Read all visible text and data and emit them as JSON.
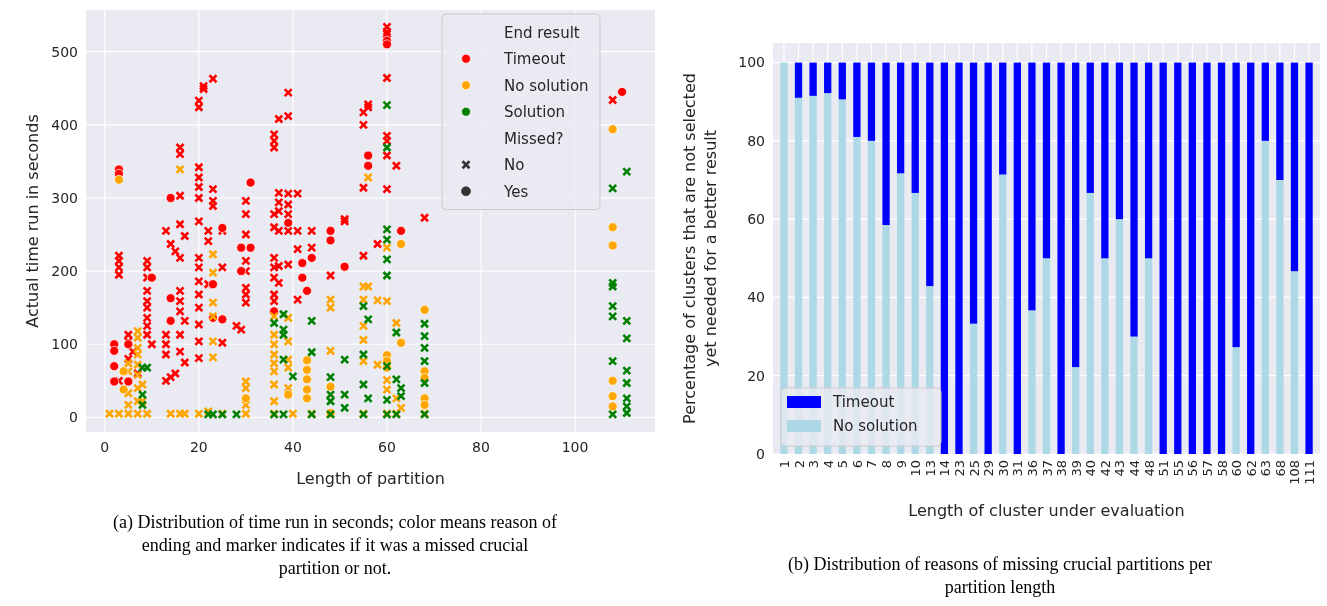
{
  "chart_data": [
    {
      "type": "scatter",
      "xlabel": "Length of partition",
      "ylabel": "Actual time run in seconds",
      "legend_title": "End result",
      "xlim": [
        -4,
        117
      ],
      "ylim": [
        -20,
        557
      ],
      "xticks": [
        0,
        20,
        40,
        60,
        80,
        100
      ],
      "yticks": [
        0,
        100,
        200,
        300,
        400,
        500
      ],
      "grid": true,
      "legend": "top right",
      "annotations": [
        "Missed?",
        "No",
        "Yes",
        "(a) Distribution of time run in seconds; color means reason of ending and marker indicates if it was a missed crucial partition or not."
      ],
      "series": [
        {
          "name": "Timeout",
          "color": "#ff0000",
          "marker": "cross",
          "x": [
            3,
            3,
            3,
            3,
            3,
            5,
            5,
            5,
            6,
            7,
            9,
            9,
            9,
            9,
            9,
            9,
            9,
            9,
            9,
            10,
            13,
            13,
            13,
            13,
            13,
            14,
            14,
            15,
            15,
            16,
            16,
            16,
            16,
            16,
            16,
            16,
            16,
            16,
            16,
            17,
            17,
            17,
            20,
            20,
            20,
            20,
            20,
            20,
            20,
            20,
            20,
            20,
            20,
            20,
            20,
            20,
            20,
            21,
            21,
            23,
            23,
            23,
            23,
            22,
            22,
            22,
            25,
            25,
            25,
            29,
            28,
            30,
            30,
            30,
            30,
            30,
            30,
            30,
            30,
            36,
            36,
            36,
            36,
            36,
            36,
            36,
            36,
            36,
            36,
            37,
            37,
            37,
            37,
            37,
            37,
            37,
            39,
            39,
            39,
            39,
            39,
            39,
            39,
            41,
            41,
            41,
            41,
            44,
            44,
            48,
            51,
            51,
            55,
            55,
            55,
            55,
            56,
            56,
            58,
            60,
            60,
            60,
            60,
            60,
            60,
            60,
            60,
            62,
            68,
            108
          ],
          "values": [
            195,
            205,
            214,
            221,
            50,
            113,
            104,
            80,
            90,
            60,
            214,
            205,
            191,
            173,
            159,
            150,
            136,
            125,
            113,
            100,
            255,
            113,
            100,
            86,
            50,
            237,
            55,
            227,
            60,
            369,
            360,
            303,
            264,
            218,
            173,
            159,
            145,
            113,
            90,
            248,
            132,
            75,
            433,
            424,
            342,
            328,
            315,
            300,
            268,
            218,
            205,
            186,
            168,
            150,
            127,
            104,
            81,
            453,
            449,
            463,
            312,
            296,
            289,
            255,
            241,
            182,
            255,
            205,
            102,
            120,
            125,
            296,
            278,
            250,
            214,
            200,
            177,
            168,
            157,
            387,
            378,
            369,
            278,
            260,
            218,
            205,
            191,
            168,
            159,
            408,
            307,
            294,
            282,
            255,
            207,
            184,
            444,
            412,
            306,
            291,
            278,
            255,
            209,
            306,
            255,
            230,
            161,
            255,
            232,
            194,
            271,
            268,
            417,
            400,
            314,
            221,
            428,
            424,
            237,
            534,
            527,
            524,
            464,
            385,
            378,
            358,
            312,
            344,
            273,
            434
          ]
        },
        {
          "color": "#ff0000",
          "marker": "circle",
          "x": [
            2,
            2,
            2,
            2,
            3,
            3,
            5,
            5,
            10,
            14,
            14,
            14,
            23,
            23,
            25,
            25,
            29,
            29,
            31,
            31,
            36,
            39,
            42,
            42,
            43,
            44,
            48,
            48,
            51,
            56,
            56,
            60,
            60,
            63,
            110
          ],
          "values": [
            100,
            91,
            70,
            49,
            339,
            333,
            100,
            49,
            191,
            163,
            132,
            300,
            182,
            136,
            259,
            134,
            200,
            232,
            321,
            232,
            145,
            266,
            211,
            191,
            173,
            218,
            255,
            242,
            206,
            358,
            344,
            515,
            510,
            255,
            445
          ]
        },
        {
          "name": "No solution",
          "color": "#ffa500",
          "marker": "cross",
          "x": [
            1,
            3,
            5,
            7,
            9,
            14,
            16,
            17,
            20,
            22,
            25,
            30,
            36,
            40,
            44,
            48,
            55,
            60,
            62,
            68,
            5,
            5,
            5,
            5,
            7,
            7,
            7,
            7,
            7,
            7,
            7,
            7,
            8,
            8,
            16,
            23,
            23,
            23,
            23,
            23,
            23,
            30,
            30,
            30,
            36,
            36,
            36,
            36,
            36,
            36,
            36,
            36,
            39,
            39,
            39,
            39,
            39,
            48,
            48,
            48,
            55,
            55,
            55,
            55,
            55,
            56,
            56,
            58,
            58,
            60,
            60,
            60,
            60,
            60,
            62,
            62,
            63
          ],
          "values": [
            5,
            5,
            5,
            5,
            5,
            5,
            5,
            5,
            5,
            8,
            5,
            5,
            5,
            5,
            5,
            5,
            5,
            5,
            5,
            5,
            74,
            63,
            33,
            17,
            118,
            109,
            95,
            86,
            72,
            58,
            40,
            22,
            45,
            22,
            339,
            223,
            198,
            157,
            138,
            104,
            82,
            49,
            40,
            17,
            138,
            113,
            100,
            86,
            74,
            63,
            45,
            22,
            136,
            104,
            79,
            68,
            40,
            161,
            150,
            91,
            179,
            161,
            125,
            106,
            77,
            328,
            179,
            160,
            72,
            159,
            232,
            79,
            51,
            38,
            129,
            26,
            13
          ]
        },
        {
          "color": "#ffa500",
          "marker": "circle",
          "x": [
            3,
            4,
            4,
            30,
            39,
            43,
            43,
            43,
            43,
            43,
            48,
            48,
            60,
            60,
            60,
            63,
            63,
            68,
            68,
            68,
            68,
            68,
            108,
            108,
            108,
            108,
            108,
            108
          ],
          "values": [
            325,
            63,
            38,
            26,
            31,
            78,
            65,
            52,
            38,
            26,
            42,
            6,
            85,
            77,
            68,
            237,
            102,
            147,
            63,
            54,
            26,
            17,
            260,
            235,
            50,
            29,
            15,
            394
          ]
        },
        {
          "name": "Solution",
          "color": "#008000",
          "marker": "cross",
          "x": [
            8,
            8,
            8,
            9,
            22,
            23,
            25,
            28,
            36,
            36,
            38,
            38,
            38,
            38,
            38,
            40,
            44,
            44,
            44,
            48,
            48,
            48,
            48,
            51,
            51,
            51,
            55,
            55,
            55,
            55,
            56,
            56,
            60,
            60,
            60,
            60,
            60,
            60,
            60,
            60,
            60,
            62,
            62,
            62,
            63,
            63,
            68,
            68,
            68,
            68,
            68,
            68,
            108,
            108,
            108,
            108,
            108,
            108,
            108,
            111,
            111,
            111,
            111,
            111,
            111,
            111,
            111
          ],
          "values": [
            68,
            31,
            17,
            68,
            4,
            4,
            4,
            4,
            129,
            4,
            141,
            120,
            113,
            79,
            4,
            56,
            132,
            89,
            4,
            55,
            31,
            22,
            4,
            79,
            31,
            13,
            152,
            86,
            45,
            4,
            134,
            26,
            427,
            369,
            257,
            243,
            216,
            194,
            70,
            24,
            4,
            116,
            52,
            4,
            40,
            29,
            128,
            111,
            95,
            77,
            47,
            4,
            184,
            179,
            152,
            138,
            77,
            4,
            313,
            132,
            108,
            64,
            47,
            26,
            15,
            6,
            336
          ]
        }
      ]
    },
    {
      "type": "bar",
      "stacked": true,
      "xlabel": "Length of cluster under evaluation",
      "ylabel": "Percentage of clusters that are not selected yet needed for a better result",
      "ylim": [
        0,
        105
      ],
      "yticks": [
        0,
        20,
        40,
        60,
        80,
        100
      ],
      "grid": true,
      "legend": "bottom left",
      "annotations": [
        "(b) Distribution of reasons of missing crucial partitions per partition length"
      ],
      "categories": [
        "1",
        "2",
        "3",
        "4",
        "5",
        "6",
        "7",
        "8",
        "9",
        "10",
        "13",
        "14",
        "23",
        "25",
        "29",
        "30",
        "31",
        "36",
        "37",
        "38",
        "39",
        "40",
        "42",
        "43",
        "44",
        "48",
        "51",
        "55",
        "56",
        "57",
        "58",
        "60",
        "62",
        "63",
        "68",
        "108",
        "111"
      ],
      "series": [
        {
          "name": "No solution",
          "color": "#add8e6",
          "values": [
            100,
            91,
            91.5,
            92.2,
            90.6,
            81,
            80,
            58.5,
            71.7,
            66.7,
            42.9,
            0,
            0,
            33.3,
            0,
            71.4,
            0,
            36.7,
            50,
            0,
            22.2,
            66.7,
            50,
            60,
            30,
            50,
            0,
            0,
            0,
            0,
            0,
            27.3,
            0,
            80,
            70,
            46.7,
            0
          ]
        },
        {
          "name": "Timeout",
          "color": "#0000ff",
          "values": [
            0,
            9,
            8.5,
            7.8,
            9.4,
            19,
            20,
            41.5,
            28.3,
            33.3,
            57.1,
            100,
            100,
            66.7,
            100,
            28.6,
            100,
            63.3,
            50,
            100,
            77.8,
            33.3,
            50,
            40,
            70,
            50,
            100,
            100,
            100,
            100,
            100,
            72.7,
            100,
            20,
            30,
            53.3,
            100
          ]
        }
      ]
    }
  ]
}
